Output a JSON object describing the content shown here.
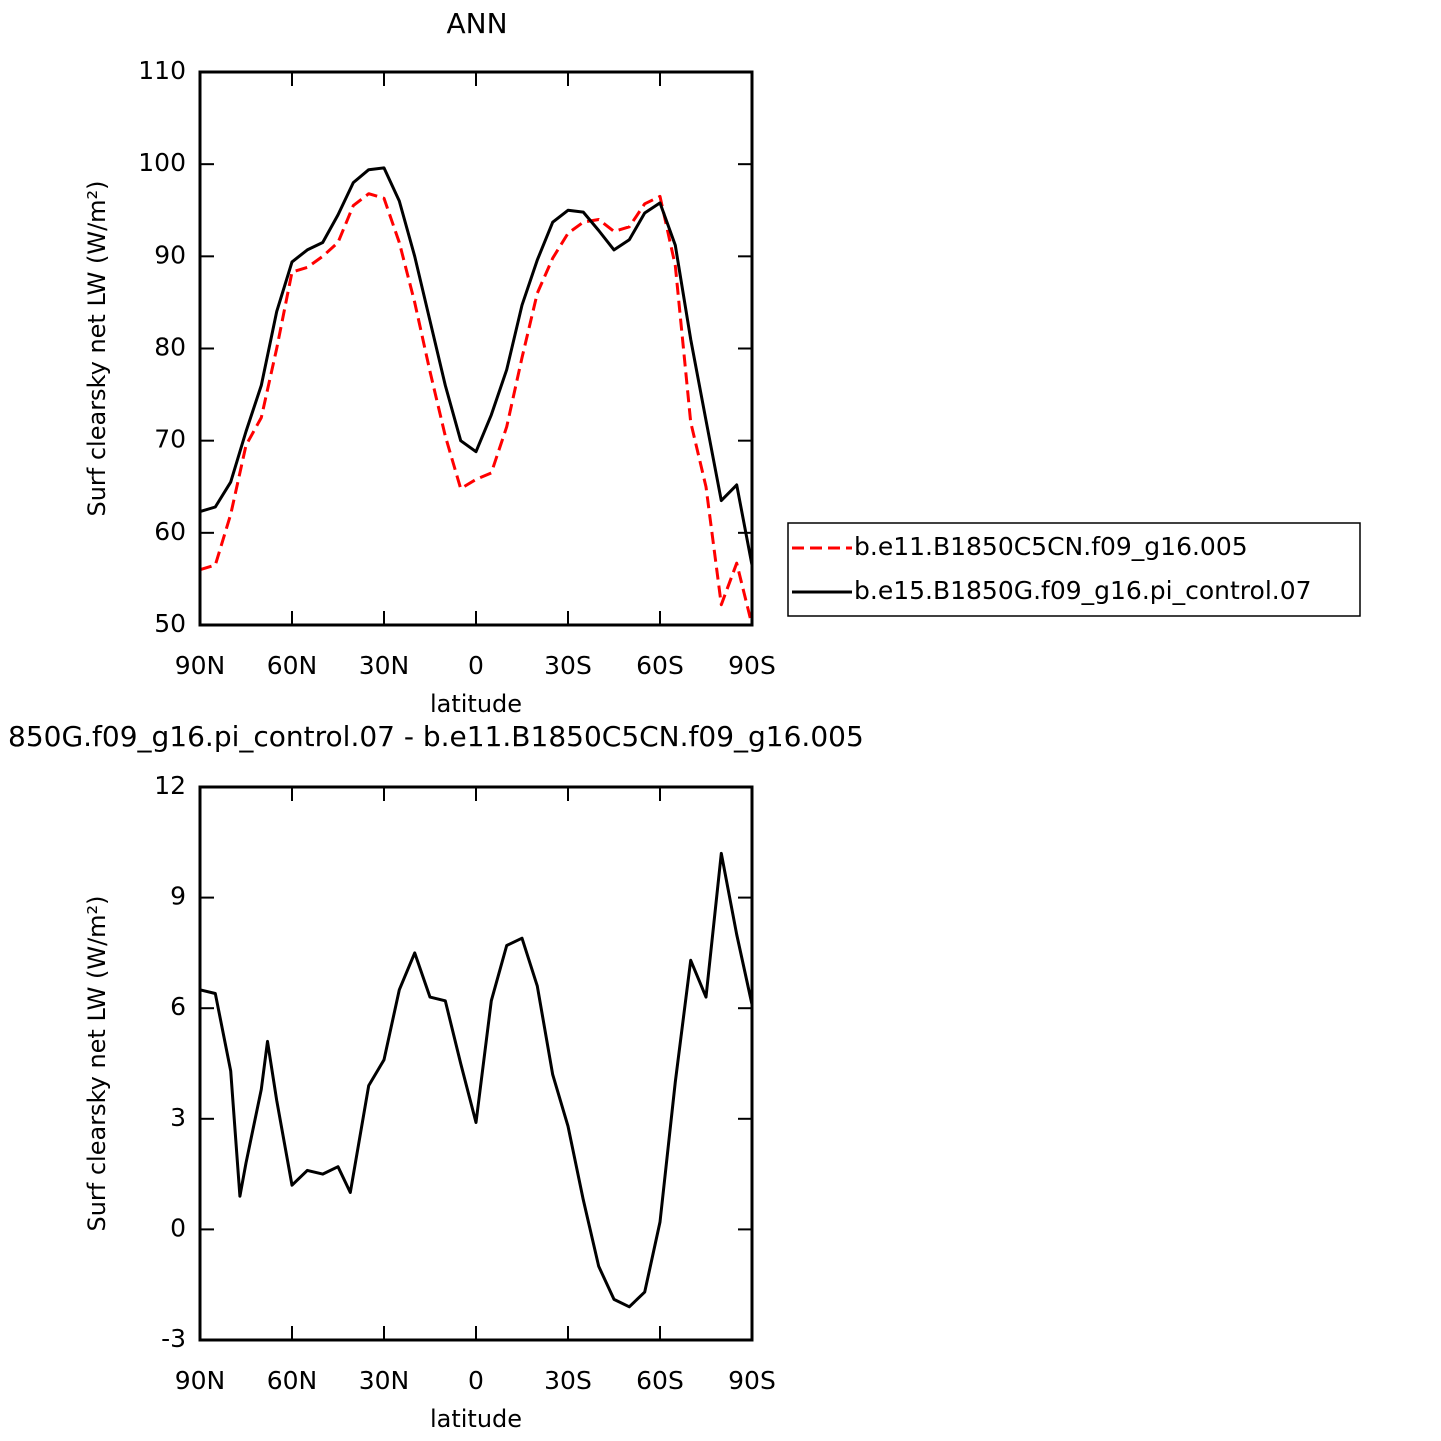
{
  "chart_data": [
    {
      "type": "line",
      "title": "ANN",
      "xlabel": "latitude",
      "ylabel": "Surf clearsky net LW (W/m²)",
      "xlim": [
        90,
        -90
      ],
      "xticks": [
        {
          "value": 90,
          "label": "90N"
        },
        {
          "value": 60,
          "label": "60N"
        },
        {
          "value": 30,
          "label": "30N"
        },
        0,
        {
          "value": -30,
          "label": "30S"
        },
        {
          "value": -60,
          "label": "60S"
        },
        {
          "value": -90,
          "label": "90S"
        }
      ],
      "ylim": [
        50,
        110
      ],
      "yticks": [
        50,
        60,
        70,
        80,
        90,
        100,
        110
      ],
      "grid": false,
      "legend": "right",
      "x": [
        90,
        85,
        80,
        75,
        70,
        65,
        60,
        55,
        50,
        45,
        40,
        35,
        30,
        25,
        20,
        15,
        10,
        5,
        0,
        -5,
        -10,
        -15,
        -20,
        -25,
        -30,
        -35,
        -40,
        -45,
        -50,
        -55,
        -60,
        -65,
        -70,
        -75,
        -80,
        -85,
        -90
      ],
      "series": [
        {
          "name": "b.e11.B1850C5CN.f09_g16.005",
          "color": "#ff0000",
          "linestyle": "dashed",
          "values": [
            56,
            56.5,
            62,
            69.5,
            72.5,
            80,
            88.3,
            88.8,
            90,
            91.5,
            95.5,
            96.8,
            96.3,
            91.5,
            85,
            77.5,
            70.5,
            64.8,
            65.8,
            66.5,
            71.5,
            79,
            86,
            89.8,
            92.5,
            93.7,
            94,
            92.7,
            93.2,
            95.7,
            96.5,
            89,
            72,
            65,
            52.2,
            56.7,
            50
          ]
        },
        {
          "name": "b.e15.B1850G.f09_g16.pi_control.07",
          "color": "#000000",
          "linestyle": "solid",
          "values": [
            62.3,
            62.8,
            65.5,
            71,
            76,
            84,
            89.4,
            90.7,
            91.5,
            94.5,
            98,
            99.4,
            99.6,
            96,
            90,
            83,
            76,
            70,
            68.8,
            72.8,
            77.7,
            84.7,
            89.6,
            93.7,
            95,
            94.8,
            92.8,
            90.7,
            91.8,
            94.7,
            95.8,
            91.2,
            81,
            72.2,
            63.5,
            65.2,
            56.5
          ]
        }
      ]
    },
    {
      "type": "line",
      "title": "850G.f09_g16.pi_control.07 - b.e11.B1850C5CN.f09_g16.005",
      "xlabel": "latitude",
      "ylabel": "Surf clearsky net LW (W/m²)",
      "xlim": [
        90,
        -90
      ],
      "xticks": [
        {
          "value": 90,
          "label": "90N"
        },
        {
          "value": 60,
          "label": "60N"
        },
        {
          "value": 30,
          "label": "30N"
        },
        0,
        {
          "value": -30,
          "label": "30S"
        },
        {
          "value": -60,
          "label": "60S"
        },
        {
          "value": -90,
          "label": "90S"
        }
      ],
      "ylim": [
        -3,
        12
      ],
      "yticks": [
        -3,
        0,
        3,
        6,
        9,
        12
      ],
      "grid": false,
      "x": [
        90,
        85,
        80,
        77,
        75,
        70,
        68,
        65,
        60,
        55,
        50,
        45,
        41,
        35,
        30,
        25,
        20,
        15,
        10,
        5,
        0,
        -5,
        -10,
        -15,
        -20,
        -25,
        -30,
        -35,
        -40,
        -45,
        -50,
        -55,
        -60,
        -65,
        -70,
        -75,
        -80,
        -85,
        -90
      ],
      "series": [
        {
          "color": "#000000",
          "linestyle": "solid",
          "values": [
            6.5,
            6.4,
            4.3,
            0.9,
            1.8,
            3.8,
            5.1,
            3.5,
            1.2,
            1.6,
            1.5,
            1.7,
            1.0,
            3.9,
            4.6,
            6.5,
            7.5,
            6.3,
            6.2,
            4.5,
            2.9,
            6.2,
            7.7,
            7.9,
            6.6,
            4.2,
            2.8,
            0.8,
            -1.0,
            -1.9,
            -2.1,
            -1.7,
            0.2,
            4.0,
            7.3,
            6.3,
            10.2,
            8.0,
            6.1
          ]
        }
      ]
    }
  ]
}
